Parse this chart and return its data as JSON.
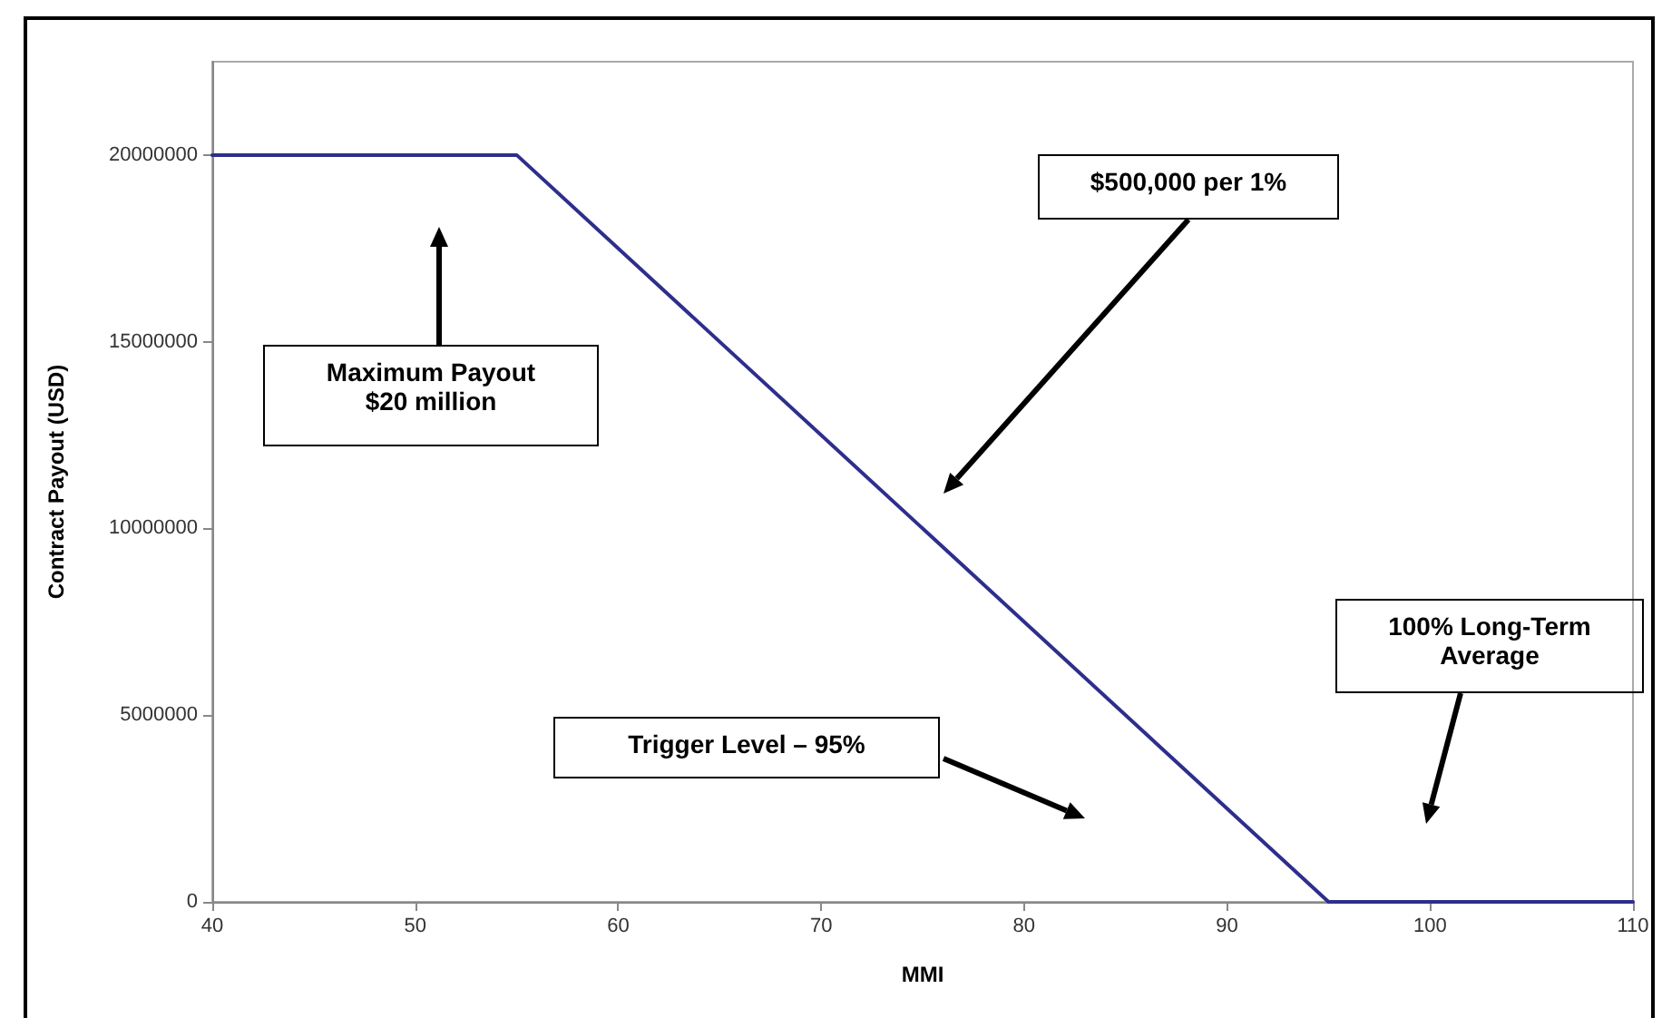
{
  "chart_data": {
    "type": "line",
    "xlabel": "MMI",
    "ylabel": "Contract Payout (USD)",
    "x": [
      40,
      55,
      95,
      110
    ],
    "series": [
      {
        "color": "#2e2e8c",
        "values": [
          20000000,
          20000000,
          0,
          0
        ]
      }
    ],
    "xlim": [
      40,
      110
    ],
    "xticks": [
      40,
      50,
      60,
      70,
      80,
      90,
      100,
      110
    ],
    "ylim": [
      0,
      22500000
    ],
    "yticks": [
      0,
      5000000,
      10000000,
      15000000,
      20000000
    ],
    "grid": false,
    "marker": "none",
    "line_style": "solid",
    "annotations": [
      "Maximum Payout\n$20 million",
      "$500,000 per 1%",
      "100% Long-Term\nAverage",
      "Trigger Level – 95%"
    ]
  }
}
